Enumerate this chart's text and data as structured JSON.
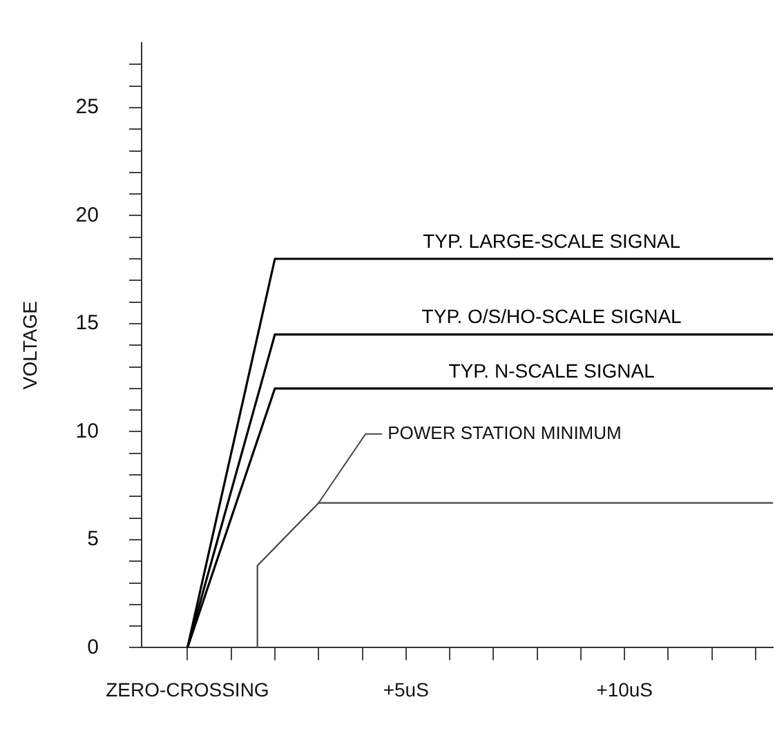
{
  "chart_data": {
    "type": "line",
    "ylabel": "VOLTAGE",
    "xlim": [
      -1.05,
      13.4
    ],
    "xticks": [
      {
        "value": 0,
        "label": "ZERO-CROSSING"
      },
      {
        "value": 1,
        "label": null
      },
      {
        "value": 2,
        "label": null
      },
      {
        "value": 3,
        "label": null
      },
      {
        "value": 4,
        "label": null
      },
      {
        "value": 5,
        "label": "+5uS"
      },
      {
        "value": 6,
        "label": null
      },
      {
        "value": 7,
        "label": null
      },
      {
        "value": 8,
        "label": null
      },
      {
        "value": 9,
        "label": null
      },
      {
        "value": 10,
        "label": "+10uS"
      },
      {
        "value": 11,
        "label": null
      },
      {
        "value": 12,
        "label": null
      },
      {
        "value": 13,
        "label": null
      }
    ],
    "ylim": [
      0,
      28
    ],
    "yticks": [
      0,
      {
        "value": 1,
        "label": null
      },
      {
        "value": 2,
        "label": null
      },
      {
        "value": 3,
        "label": null
      },
      {
        "value": 4,
        "label": null
      },
      5,
      {
        "value": 6,
        "label": null
      },
      {
        "value": 7,
        "label": null
      },
      {
        "value": 8,
        "label": null
      },
      {
        "value": 9,
        "label": null
      },
      10,
      {
        "value": 11,
        "label": null
      },
      {
        "value": 12,
        "label": null
      },
      {
        "value": 13,
        "label": null
      },
      {
        "value": 14,
        "label": null
      },
      15,
      {
        "value": 16,
        "label": null
      },
      {
        "value": 17,
        "label": null
      },
      {
        "value": 18,
        "label": null
      },
      {
        "value": 19,
        "label": null
      },
      20,
      {
        "value": 21,
        "label": null
      },
      {
        "value": 22,
        "label": null
      },
      {
        "value": 23,
        "label": null
      },
      {
        "value": 24,
        "label": null
      },
      25,
      {
        "value": 26,
        "label": null
      },
      {
        "value": 27,
        "label": null
      }
    ],
    "grid": false,
    "legend": false,
    "marker": "none",
    "line_style": "solid",
    "series": [
      {
        "name": "TYP. LARGE-SCALE SIGNAL",
        "color": "#000000",
        "x": [
          0,
          2,
          13.4
        ],
        "values": [
          0,
          18,
          18
        ]
      },
      {
        "name": "TYP. O/S/HO-SCALE SIGNAL",
        "color": "#000000",
        "x": [
          0,
          2,
          13.4
        ],
        "values": [
          0,
          14.5,
          14.5
        ]
      },
      {
        "name": "TYP. N-SCALE SIGNAL",
        "color": "#000000",
        "x": [
          0,
          2,
          13.4
        ],
        "values": [
          0,
          12,
          12
        ]
      },
      {
        "color": "#444444",
        "x": [
          1.6,
          1.6,
          3,
          13.4
        ],
        "values": [
          0,
          3.8,
          6.7,
          6.7
        ]
      }
    ],
    "annotations": [
      {
        "text": "POWER STATION MINIMUM",
        "x": 3,
        "y": 6.7
      }
    ]
  }
}
